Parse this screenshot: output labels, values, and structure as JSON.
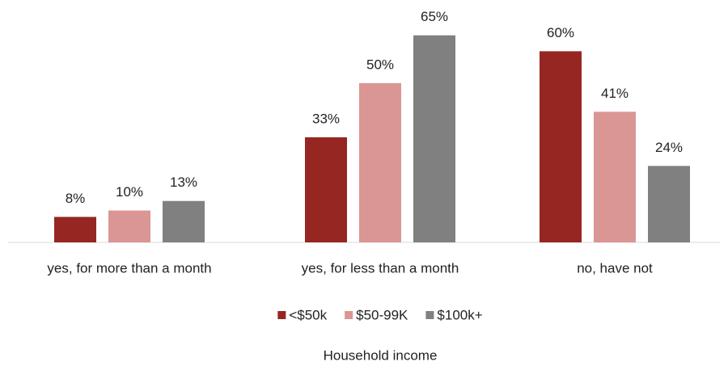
{
  "chart_data": {
    "type": "bar",
    "categories": [
      "yes, for more than a month",
      "yes, for less than a month",
      "no, have not"
    ],
    "series": [
      {
        "name": "<$50k",
        "color": "#952622",
        "values": [
          8,
          33,
          60
        ],
        "value_labels": [
          "8%",
          "33%",
          "60%"
        ]
      },
      {
        "name": "$50-99K",
        "color": "#da9694",
        "values": [
          10,
          50,
          41
        ],
        "value_labels": [
          "10%",
          "50%",
          "41%"
        ]
      },
      {
        "name": "$100k+",
        "color": "#808080",
        "values": [
          13,
          65,
          24
        ],
        "value_labels": [
          "13%",
          "65%",
          "24%"
        ]
      }
    ],
    "ylim": [
      0,
      70
    ],
    "legend_title": "Household income",
    "legend": "bottom"
  }
}
